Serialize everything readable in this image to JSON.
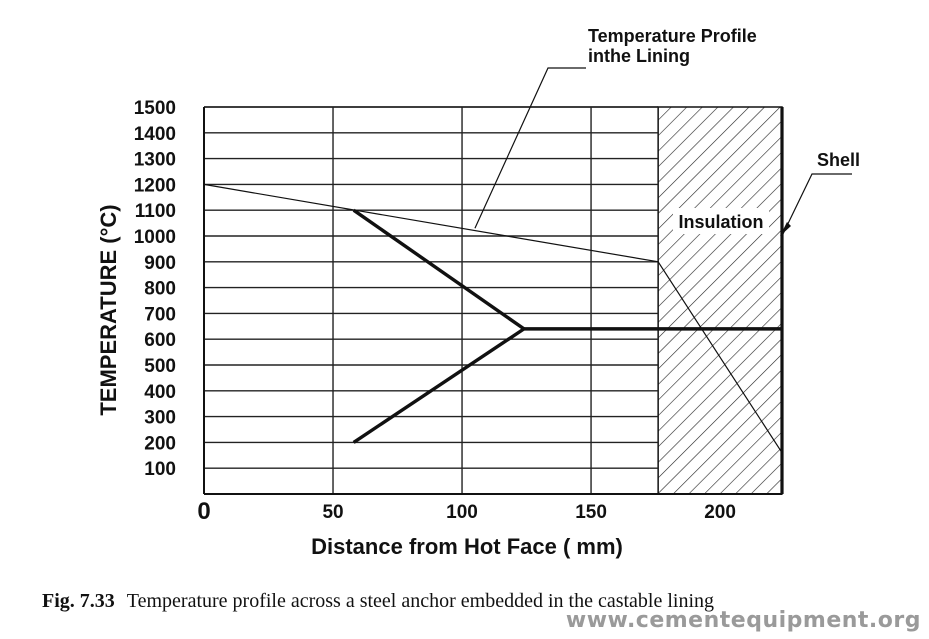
{
  "chart_data": {
    "type": "line",
    "xlabel": "Distance from Hot Face ( mm)",
    "ylabel": "TEMPERATURE (°C)",
    "xlim": [
      0,
      224
    ],
    "ylim": [
      0,
      1500
    ],
    "x_ticks": [
      "0",
      "50",
      "100",
      "150",
      "200"
    ],
    "y_ticks": [
      "100",
      "200",
      "300",
      "400",
      "500",
      "600",
      "700",
      "800",
      "900",
      "1000",
      "1100",
      "1200",
      "1300",
      "1400",
      "1500"
    ],
    "grid": true,
    "insulation_region": {
      "x_start": 176,
      "x_end": 224,
      "label": "Insulation"
    },
    "shell": {
      "x": 224,
      "label": "Shell"
    },
    "series": [
      {
        "name": "Temperature Profile inthe Lining",
        "style": "thin",
        "points": [
          [
            0,
            1200
          ],
          [
            176,
            900
          ],
          [
            224,
            160
          ]
        ]
      },
      {
        "style": "thick",
        "points": [
          [
            58,
            1100
          ],
          [
            124,
            640
          ],
          [
            58,
            200
          ]
        ]
      },
      {
        "style": "thick",
        "points": [
          [
            124,
            640
          ],
          [
            224,
            640
          ]
        ]
      }
    ],
    "annotations": [
      {
        "text_lines": [
          "Temperature Profile",
          "inthe Lining"
        ],
        "target": [
          105,
          1030
        ]
      },
      {
        "text_lines": [
          "Shell"
        ],
        "target": [
          224,
          1000
        ]
      },
      {
        "text_lines": [
          "Insulation"
        ],
        "target": null
      }
    ]
  },
  "caption": {
    "number": "Fig. 7.33",
    "text": "Temperature profile across a steel anchor embedded in the castable lining"
  },
  "watermark": "www.cementequipment.org"
}
